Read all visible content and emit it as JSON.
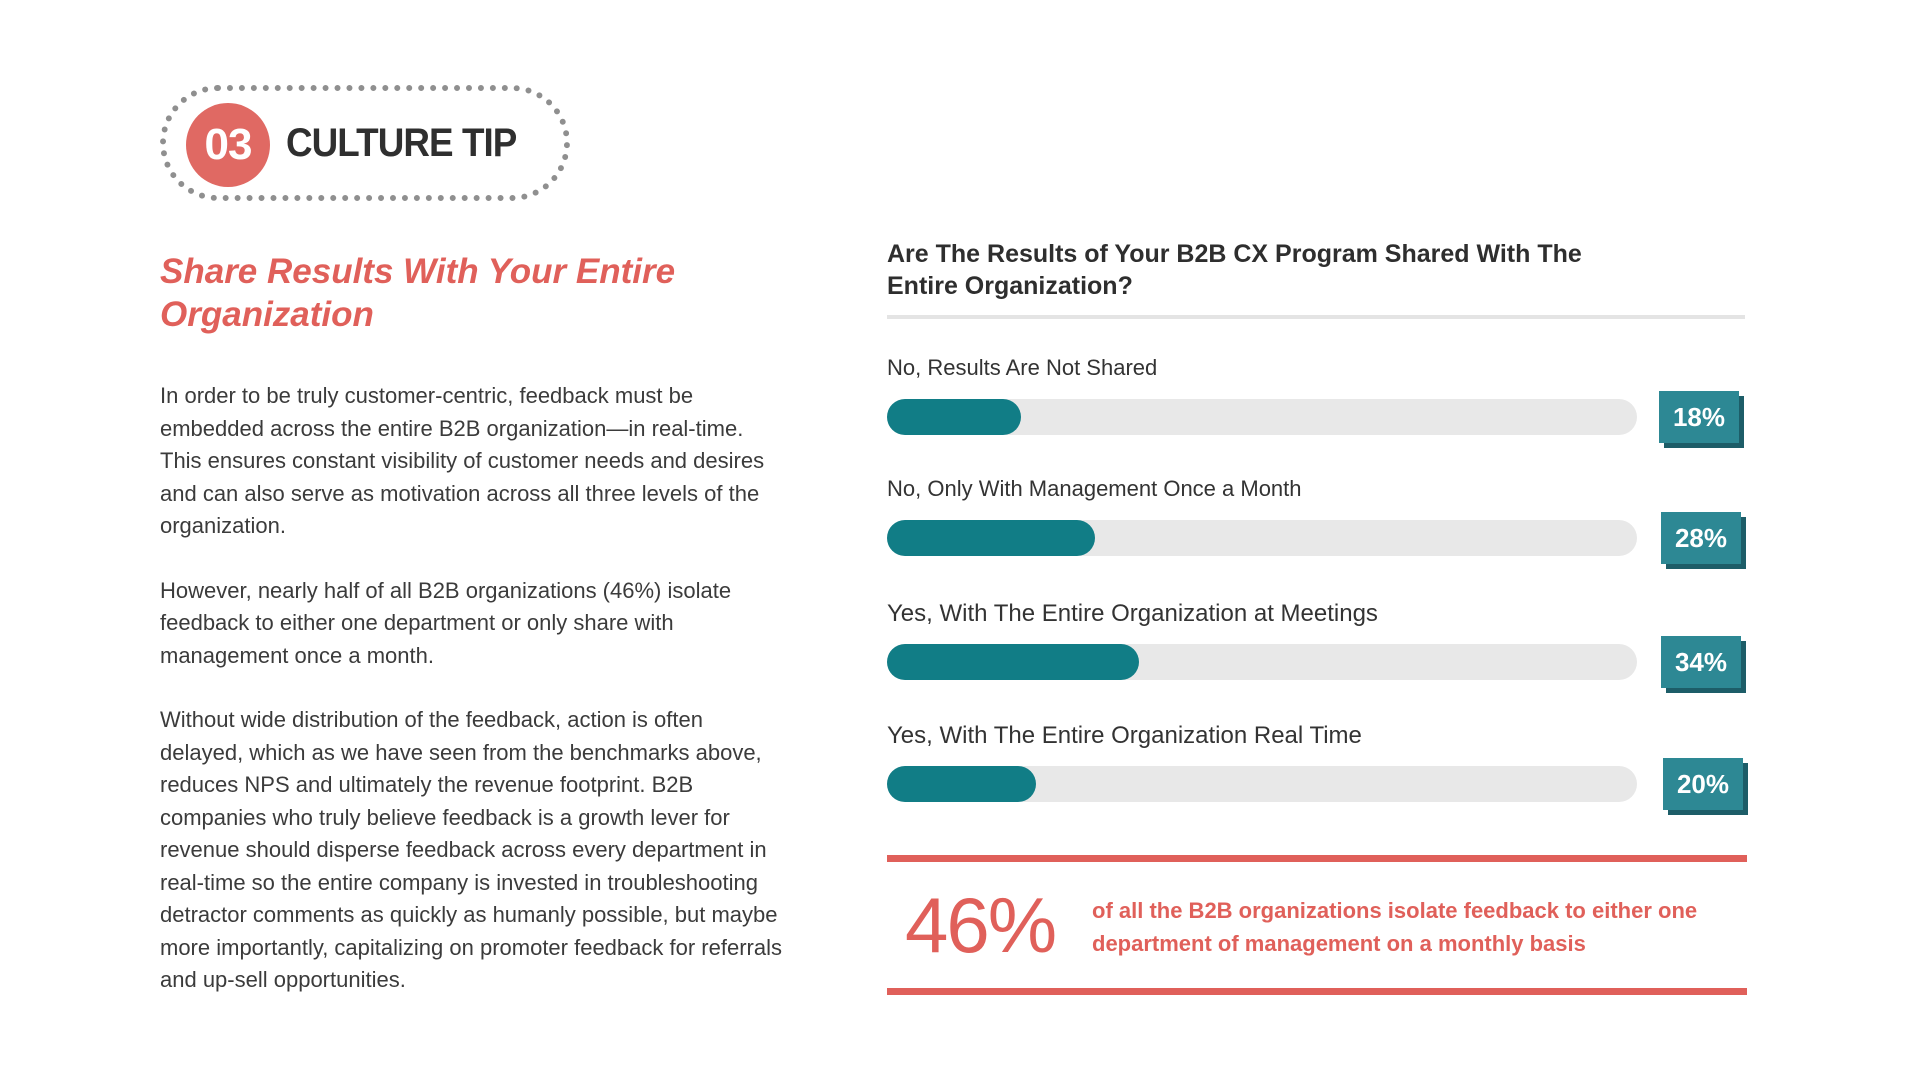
{
  "tip": {
    "number": "03",
    "label": "CULTURE TIP"
  },
  "left": {
    "heading": "Share Results With Your Entire Organization",
    "paragraphs": [
      "In order to be truly customer-centric, feedback must be embedded across the entire B2B organization—in real-time. This ensures constant visibility of customer needs and desires and can also serve as motivation across all three levels of the organization.",
      "However, nearly half of all B2B organizations (46%) isolate feedback to either one department or only share with management once a month.",
      "Without wide distribution of the feedback, action is often delayed, which as we have seen from the benchmarks above, reduces NPS and ultimately the revenue footprint. B2B companies who truly believe feedback is a growth lever for revenue should disperse feedback across every department in real-time so the entire company is invested in troubleshooting detractor comments as quickly as humanly possible, but maybe more importantly, capitalizing on promoter feedback for referrals and up-sell opportunities."
    ]
  },
  "chart_data": {
    "type": "bar",
    "orientation": "horizontal",
    "title": "Are The Results of Your B2B CX Program Shared With The Entire Organization?",
    "categories": [
      "No, Results Are Not Shared",
      "No, Only With Management Once a Month",
      "Yes, With The Entire Organization at Meetings",
      "Yes, With The Entire Organization Real Time"
    ],
    "values": [
      18,
      28,
      34,
      20
    ],
    "value_labels": [
      "18%",
      "28%",
      "34%",
      "20%"
    ],
    "xlim": [
      0,
      100
    ],
    "grid": false,
    "legend": "none",
    "colors": {
      "fill": "#117d86",
      "track": "#e8e8e8",
      "label_box": "#2d8894",
      "label_shadow": "#1d5d68"
    }
  },
  "callout": {
    "value": "46%",
    "text": "of all the B2B organizations isolate feedback to either one department of management on a monthly basis"
  },
  "colors": {
    "accent": "#e0605a",
    "teal": "#117d86"
  }
}
